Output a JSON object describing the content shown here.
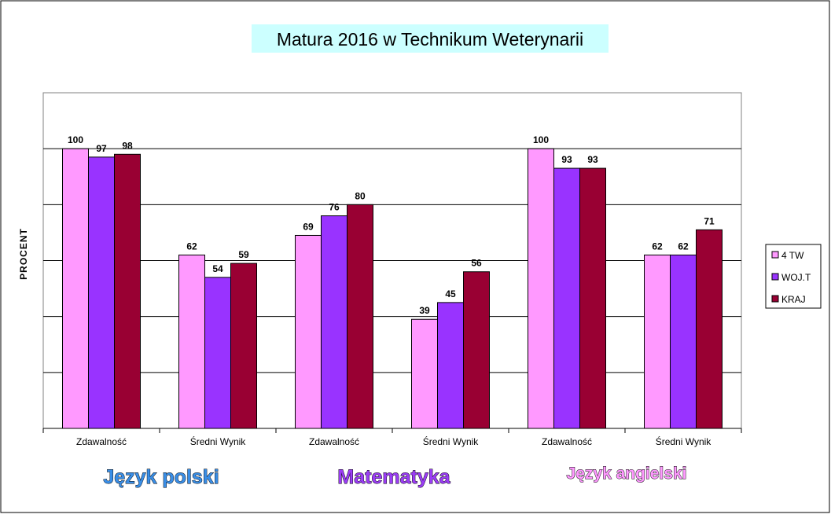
{
  "chart_data": {
    "type": "bar",
    "title": "Matura 2016 w Technikum Weterynarii",
    "ylabel": "PROCENT",
    "xlabel": "",
    "ylim": [
      0,
      120
    ],
    "grid": true,
    "legend_position": "right",
    "categories": [
      "Zdawalność",
      "Średni Wynik",
      "Zdawalność",
      "Średni Wynik",
      "Zdawalność",
      "Średni Wynik"
    ],
    "groups": [
      {
        "label": "Język polski",
        "color": "#3a8ee6"
      },
      {
        "label": "Matematyka",
        "color": "#9b3df5"
      },
      {
        "label": "Język angielski",
        "color": "#ff99ff"
      }
    ],
    "series": [
      {
        "name": "4 TW",
        "color": "#ff99ff",
        "values": [
          100,
          62,
          69,
          39,
          100,
          62
        ]
      },
      {
        "name": "WOJ.T",
        "color": "#9933ff",
        "values": [
          97,
          54,
          76,
          45,
          93,
          62
        ]
      },
      {
        "name": "KRAJ",
        "color": "#990033",
        "values": [
          98,
          59,
          80,
          56,
          93,
          71
        ]
      }
    ]
  }
}
